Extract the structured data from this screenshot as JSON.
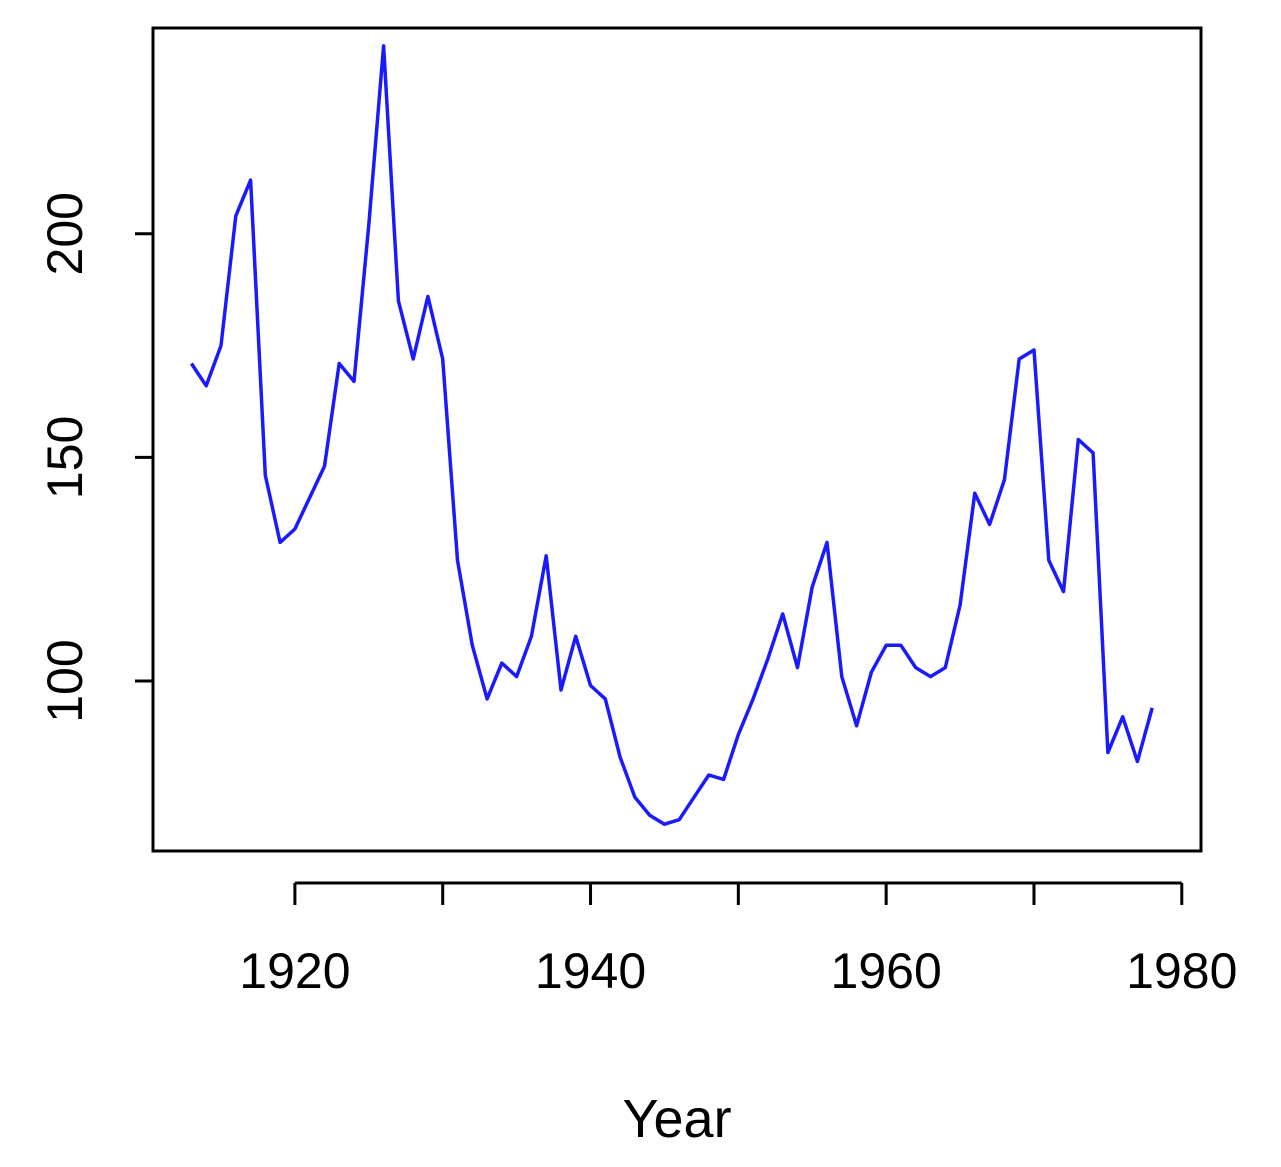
{
  "chart_data": {
    "type": "line",
    "title": "",
    "xlabel": "Year",
    "ylabel": "",
    "xlim": [
      1910.4,
      1981.3
    ],
    "ylim": [
      62,
      246
    ],
    "x_ticks": [
      1920,
      1940,
      1960,
      1980
    ],
    "y_ticks": [
      100,
      150,
      200
    ],
    "grid": false,
    "legend": "none",
    "colors": {
      "line": "#1a1aff",
      "axis": "#000000"
    },
    "series": [
      {
        "x": [
          1913,
          1914,
          1915,
          1916,
          1917,
          1918,
          1919,
          1920,
          1921,
          1922,
          1923,
          1924,
          1925,
          1926,
          1927,
          1928,
          1929,
          1930,
          1931,
          1932,
          1933,
          1934,
          1935,
          1936,
          1937,
          1938,
          1939,
          1940,
          1941,
          1942,
          1943,
          1944,
          1945,
          1946,
          1947,
          1948,
          1949,
          1950,
          1951,
          1952,
          1953,
          1954,
          1955,
          1956,
          1957,
          1958,
          1959,
          1960,
          1961,
          1962,
          1963,
          1964,
          1965,
          1966,
          1967,
          1968,
          1969,
          1970,
          1971,
          1972,
          1973,
          1974,
          1975,
          1976,
          1977,
          1978
        ],
        "values": [
          171,
          166,
          175,
          204,
          212,
          146,
          131,
          134,
          141,
          148,
          171,
          167,
          202,
          242,
          185,
          172,
          186,
          172,
          127,
          108,
          96,
          104,
          101,
          110,
          128,
          98,
          110,
          99,
          96,
          83,
          74,
          70,
          68,
          69,
          74,
          79,
          78,
          88,
          96,
          105,
          115,
          103,
          121,
          131,
          101,
          90,
          102,
          108,
          108,
          103,
          101,
          103,
          117,
          142,
          135,
          145,
          172,
          174,
          127,
          120,
          154,
          151,
          84,
          92,
          82,
          94
        ]
      }
    ]
  }
}
